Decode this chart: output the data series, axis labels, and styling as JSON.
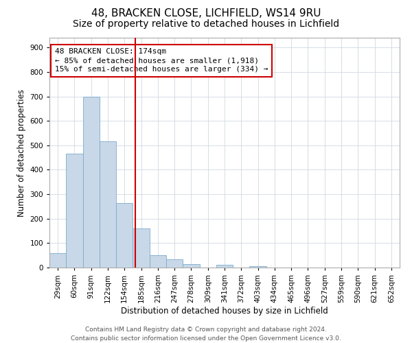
{
  "title": "48, BRACKEN CLOSE, LICHFIELD, WS14 9RU",
  "subtitle": "Size of property relative to detached houses in Lichfield",
  "xlabel": "Distribution of detached houses by size in Lichfield",
  "ylabel": "Number of detached properties",
  "bin_labels": [
    "29sqm",
    "60sqm",
    "91sqm",
    "122sqm",
    "154sqm",
    "185sqm",
    "216sqm",
    "247sqm",
    "278sqm",
    "309sqm",
    "341sqm",
    "372sqm",
    "403sqm",
    "434sqm",
    "465sqm",
    "496sqm",
    "527sqm",
    "559sqm",
    "590sqm",
    "621sqm",
    "652sqm"
  ],
  "bar_heights": [
    60,
    465,
    700,
    515,
    265,
    160,
    50,
    35,
    15,
    0,
    10,
    0,
    5,
    0,
    0,
    0,
    0,
    0,
    0,
    0,
    0
  ],
  "bar_color": "#c8d8e8",
  "bar_edge_color": "#7aabcc",
  "vline_color": "#cc0000",
  "annotation_line1": "48 BRACKEN CLOSE: 174sqm",
  "annotation_line2": "← 85% of detached houses are smaller (1,918)",
  "annotation_line3": "15% of semi-detached houses are larger (334) →",
  "annotation_box_color": "#ffffff",
  "annotation_box_edge": "#cc0000",
  "ylim": [
    0,
    940
  ],
  "yticks": [
    0,
    100,
    200,
    300,
    400,
    500,
    600,
    700,
    800,
    900
  ],
  "footer1": "Contains HM Land Registry data © Crown copyright and database right 2024.",
  "footer2": "Contains public sector information licensed under the Open Government Licence v3.0.",
  "bg_color": "#ffffff",
  "grid_color": "#d0d8e0",
  "title_fontsize": 11,
  "subtitle_fontsize": 10,
  "label_fontsize": 8.5,
  "tick_fontsize": 7.5,
  "annotation_fontsize": 8,
  "footer_fontsize": 6.5
}
